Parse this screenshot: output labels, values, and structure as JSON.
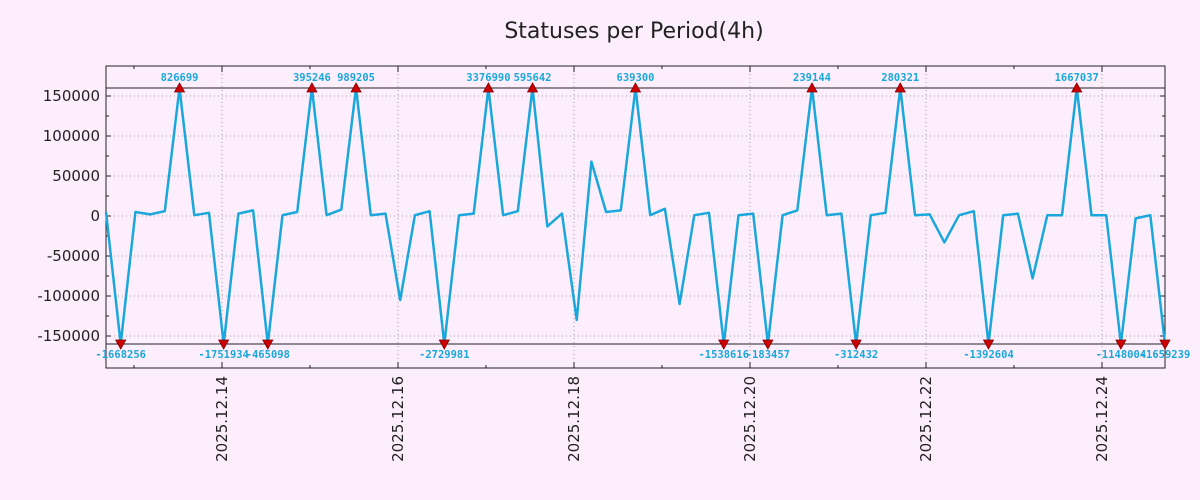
{
  "chart_data": {
    "type": "line",
    "title": "Statuses per Period(4h)",
    "xlabel": "",
    "ylabel": "",
    "x_ticks": [
      "2025.12.14",
      "2025.12.16",
      "2025.12.18",
      "2025.12.20",
      "2025.12.22",
      "2025.12.24"
    ],
    "y_ticks": [
      "150000",
      "100000",
      "50000",
      "0",
      "-50000",
      "-100000",
      "-150000"
    ],
    "ylim": [
      -160000,
      160000
    ],
    "clip_lines": [
      160000,
      -160000
    ],
    "grid": true,
    "colors": {
      "line": "#1aa8dc",
      "marker": "#cc0000",
      "label": "#1aa8dc",
      "background": "#fdeefd"
    },
    "series": [
      {
        "values": [
          5000,
          -160000,
          5000,
          2000,
          6000,
          160000,
          1000,
          4000,
          -160000,
          3000,
          7000,
          -160000,
          1000,
          5000,
          160000,
          1000,
          8000,
          160000,
          1000,
          3000,
          -105000,
          1000,
          6000,
          -160000,
          1000,
          3000,
          160000,
          1000,
          6000,
          160000,
          -13000,
          3000,
          -130000,
          68000,
          5000,
          7000,
          160000,
          1000,
          9000,
          -110000,
          1000,
          4000,
          -160000,
          1000,
          3000,
          -160000,
          1000,
          7000,
          160000,
          1000,
          3000,
          -160000,
          1000,
          4000,
          160000,
          1000,
          2000,
          -33000,
          1000,
          6000,
          -160000,
          1000,
          3000,
          -78000,
          1000,
          1000,
          160000,
          1000,
          1000,
          -160000,
          -3000,
          1000,
          -160000
        ]
      }
    ],
    "peak_labels": [
      {
        "index": 1,
        "value": -1668256,
        "label": "-1668256"
      },
      {
        "index": 5,
        "value": 826699,
        "label": "826699"
      },
      {
        "index": 8,
        "value": -1751934,
        "label": "-1751934"
      },
      {
        "index": 11,
        "value": -465098,
        "label": "-465098"
      },
      {
        "index": 14,
        "value": 395246,
        "label": "395246"
      },
      {
        "index": 17,
        "value": 989205,
        "label": "989205"
      },
      {
        "index": 23,
        "value": -2729981,
        "label": "-2729981"
      },
      {
        "index": 26,
        "value": 3376990,
        "label": "3376990"
      },
      {
        "index": 29,
        "value": 595642,
        "label": "595642"
      },
      {
        "index": 36,
        "value": 639300,
        "label": "639300"
      },
      {
        "index": 42,
        "value": -1538616,
        "label": "-1538616"
      },
      {
        "index": 45,
        "value": -183457,
        "label": "-183457"
      },
      {
        "index": 48,
        "value": 239144,
        "label": "239144"
      },
      {
        "index": 51,
        "value": -312432,
        "label": "-312432"
      },
      {
        "index": 54,
        "value": 280321,
        "label": "280321"
      },
      {
        "index": 60,
        "value": -1392604,
        "label": "-1392604"
      },
      {
        "index": 66,
        "value": 1667037,
        "label": "1667037"
      },
      {
        "index": 69,
        "value": -1148004,
        "label": "-1148004"
      },
      {
        "index": 72,
        "value": -1659239,
        "label": "-1659239"
      }
    ]
  }
}
